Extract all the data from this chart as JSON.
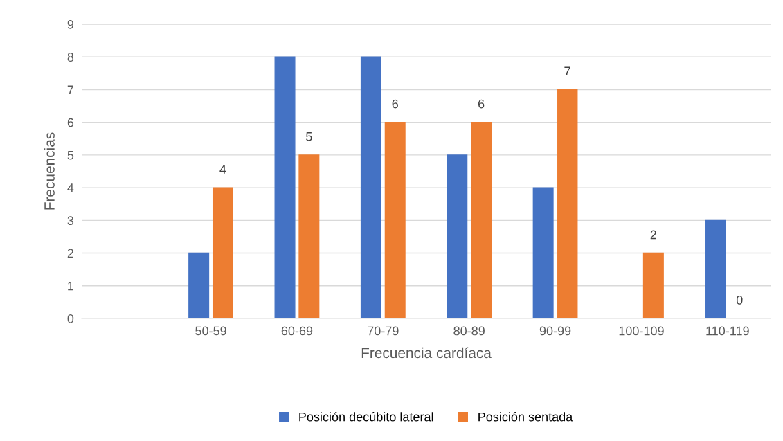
{
  "chart_data": {
    "type": "bar",
    "xlabel": "Frecuencia cardíaca",
    "ylabel": "Frecuencias",
    "categories": [
      null,
      "50-59",
      "60-69",
      "70-79",
      "80-89",
      "90-99",
      "100-109",
      "110-119"
    ],
    "series": [
      {
        "name": "Posición decúbito lateral",
        "color": "#4472c4",
        "values": [
          null,
          2,
          8,
          8,
          5,
          4,
          null,
          3
        ]
      },
      {
        "name": "Posición sentada",
        "color": "#ed7d31",
        "values": [
          null,
          4,
          5,
          6,
          6,
          7,
          2,
          0
        ],
        "value_labels": [
          null,
          "4",
          "5",
          "6",
          "6",
          "7",
          "2",
          "0"
        ]
      }
    ],
    "ylim": [
      0,
      9
    ],
    "yticks": [
      0,
      1,
      2,
      3,
      4,
      5,
      6,
      7,
      8,
      9
    ],
    "grid": "y",
    "legend": "bottom"
  }
}
